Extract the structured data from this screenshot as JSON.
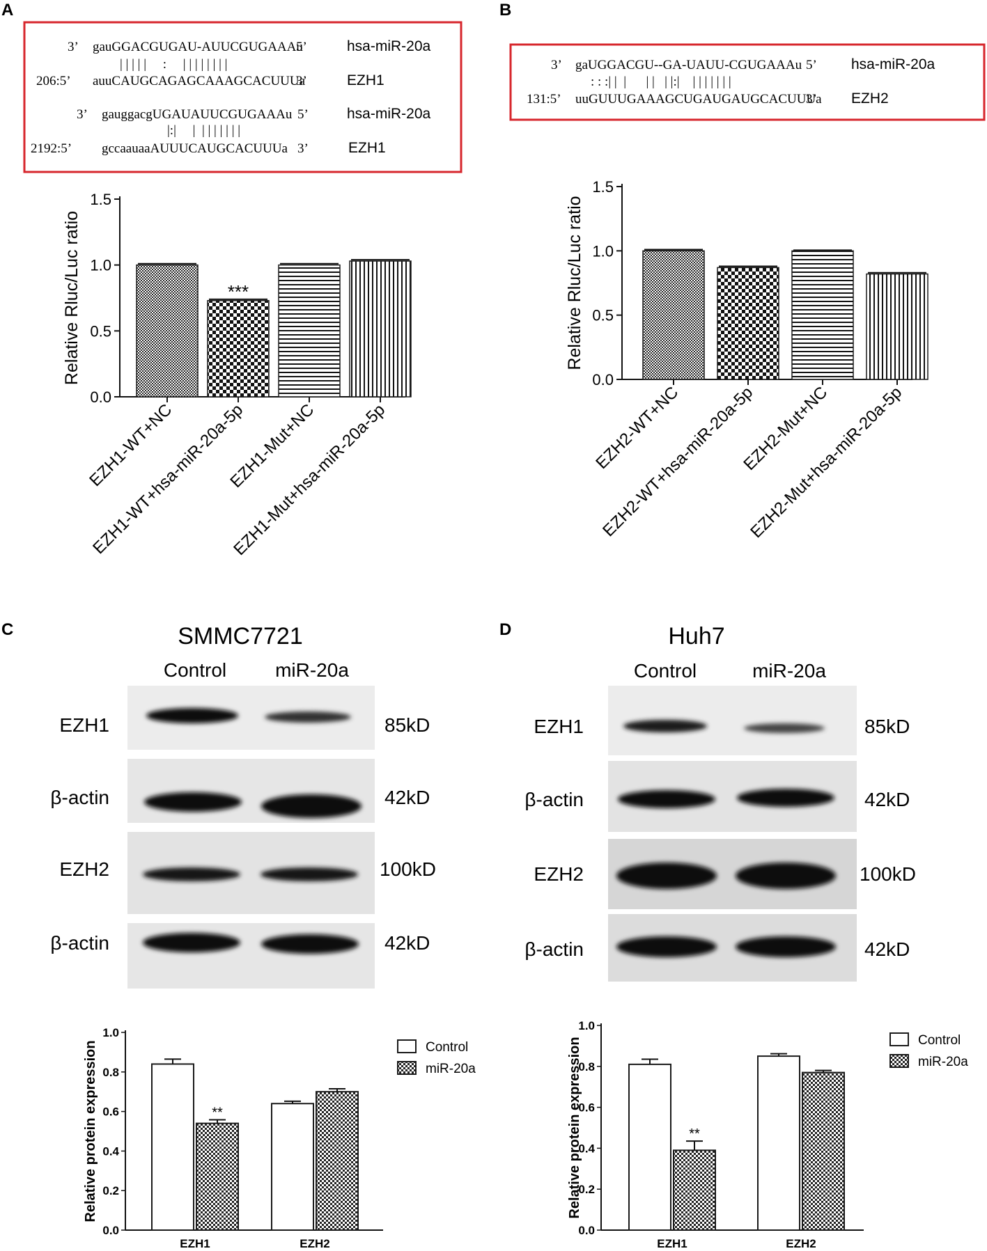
{
  "panel_letters": {
    "a": "A",
    "b": "B",
    "c": "C",
    "d": "D"
  },
  "colors": {
    "box_border": "#d7262c",
    "bar_edge": "#1a1a1a",
    "blot_bg": "#e9e9e9",
    "band": "#111111"
  },
  "panelA": {
    "alignments": [
      {
        "mir_prefix": "3’",
        "mir_seq": "gauGGACGUGAU-AUUCGUGAAAu",
        "mir_suffix": "5’",
        "mir_name": "hsa-miR-20a",
        "pairs": "| | | | |     :     | | | | | | | |",
        "tgt_prefix": "206:5’",
        "tgt_seq": "auuCAUGCAGAGCAAAGCACUUUa",
        "tgt_suffix": "3’",
        "tgt_name": "EZH1"
      },
      {
        "mir_prefix": "3’",
        "mir_seq": "gauggacgUGAUAUUCGUGAAAu",
        "mir_suffix": "5’",
        "mir_name": "hsa-miR-20a",
        "pairs": "|:|     |  | | | | | | |",
        "tgt_prefix": "2192:5’",
        "tgt_seq": "gccaauaaAUUUCAUGCACUUUa",
        "tgt_suffix": "3’",
        "tgt_name": "EZH1"
      }
    ]
  },
  "panelB": {
    "alignment": {
      "mir_prefix": "3’",
      "mir_seq": "gaUGGACGU--GA-UAUU-CGUGAAAu",
      "mir_suffix": "5’",
      "mir_name": "hsa-miR-20a",
      "pairs": ": : :| |  |      | |   | |:|    | | | | | | |",
      "tgt_prefix": "131:5’",
      "tgt_seq": "uuGUUUGAAAGCUGAUGAUGCACUUUa",
      "tgt_suffix": "3’",
      "tgt_name": "EZH2"
    }
  },
  "panelC": {
    "title": "SMMC7721",
    "lanes": [
      "Control",
      "miR-20a"
    ],
    "rows": [
      {
        "label": "EZH1",
        "kd": "85kD"
      },
      {
        "label": "β-actin",
        "kd": "42kD"
      },
      {
        "label": "EZH2",
        "kd": "100kD"
      },
      {
        "label": "β-actin",
        "kd": "42kD"
      }
    ]
  },
  "panelD": {
    "title": "Huh7",
    "lanes": [
      "Control",
      "miR-20a"
    ],
    "rows": [
      {
        "label": "EZH1",
        "kd": "85kD"
      },
      {
        "label": "β-actin",
        "kd": "42kD"
      },
      {
        "label": "EZH2",
        "kd": "100kD"
      },
      {
        "label": "β-actin",
        "kd": "42kD"
      }
    ]
  },
  "chart_data": [
    {
      "id": "A",
      "type": "bar",
      "ylabel": "Relative Rluc/Luc ratio",
      "ylim": [
        0,
        1.5
      ],
      "yticks": [
        "0.0",
        "0.5",
        "1.0",
        "1.5"
      ],
      "categories": [
        "EZH1-WT+NC",
        "EZH1-WT+hsa-miR-20a-5p",
        "EZH1-Mut+NC",
        "EZH1-Mut+hsa-miR-20a-5p"
      ],
      "values": [
        1.0,
        0.73,
        1.0,
        1.03
      ],
      "errors": [
        0.01,
        0.01,
        0.01,
        0.01
      ],
      "patterns": [
        "fine",
        "check",
        "horiz",
        "vert"
      ],
      "annotations": [
        "",
        "***",
        "",
        ""
      ],
      "grid": false
    },
    {
      "id": "B",
      "type": "bar",
      "ylabel": "Relative Rluc/Luc ratio",
      "ylim": [
        0,
        1.5
      ],
      "yticks": [
        "0.0",
        "0.5",
        "1.0",
        "1.5"
      ],
      "categories": [
        "EZH2-WT+NC",
        "EZH2-WT+hsa-miR-20a-5p",
        "EZH2-Mut+NC",
        "EZH2-Mut+hsa-miR-20a-5p"
      ],
      "values": [
        1.0,
        0.87,
        1.0,
        0.82
      ],
      "errors": [
        0.01,
        0.01,
        0.005,
        0.01
      ],
      "patterns": [
        "fine",
        "check",
        "horiz",
        "vert"
      ],
      "annotations": [
        "",
        "",
        "",
        ""
      ],
      "grid": false
    },
    {
      "id": "C",
      "type": "bar",
      "ylabel": "Relative protein expression",
      "ylim": [
        0,
        1.0
      ],
      "yticks": [
        "0.0",
        "0.2",
        "0.4",
        "0.6",
        "0.8",
        "1.0"
      ],
      "categories": [
        "EZH1",
        "EZH2"
      ],
      "series": [
        {
          "name": "Control",
          "values": [
            0.84,
            0.64
          ],
          "errors": [
            0.025,
            0.012
          ],
          "pattern": "white"
        },
        {
          "name": "miR-20a",
          "values": [
            0.54,
            0.7
          ],
          "errors": [
            0.018,
            0.015
          ],
          "pattern": "check"
        }
      ],
      "annotations": [
        {
          "category": "EZH1",
          "series": "miR-20a",
          "text": "**"
        }
      ],
      "legend": "right",
      "grid": false
    },
    {
      "id": "D",
      "type": "bar",
      "ylabel": "Relative protein expression",
      "ylim": [
        0,
        1.0
      ],
      "yticks": [
        "0.0",
        "0.2",
        "0.4",
        "0.6",
        "0.8",
        "1.0"
      ],
      "categories": [
        "EZH1",
        "EZH2"
      ],
      "series": [
        {
          "name": "Control",
          "values": [
            0.81,
            0.85
          ],
          "errors": [
            0.025,
            0.012
          ],
          "pattern": "white"
        },
        {
          "name": "miR-20a",
          "values": [
            0.39,
            0.77
          ],
          "errors": [
            0.045,
            0.01
          ],
          "pattern": "check"
        }
      ],
      "annotations": [
        {
          "category": "EZH1",
          "series": "miR-20a",
          "text": "**"
        }
      ],
      "legend": "right",
      "grid": false
    }
  ]
}
